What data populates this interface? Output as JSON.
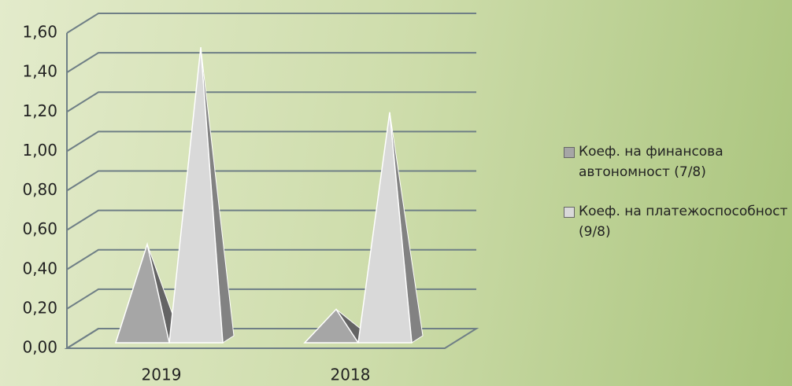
{
  "chart_data": {
    "type": "bar",
    "categories": [
      "2019",
      "2018"
    ],
    "series": [
      {
        "name": "Коеф. на финансова автономност (7/8)",
        "color": "#a6a6a6",
        "values": [
          0.48,
          0.15
        ]
      },
      {
        "name": "Коеф. на платежоспособност (9/8)",
        "color": "#d9d9d9",
        "values": [
          1.48,
          1.15
        ]
      }
    ],
    "ylim": [
      0,
      1.6
    ],
    "yticks": [
      {
        "value": 0,
        "label": "0,00"
      },
      {
        "value": 0.2,
        "label": "0,20"
      },
      {
        "value": 0.4,
        "label": "0,40"
      },
      {
        "value": 0.6,
        "label": "0,60"
      },
      {
        "value": 0.8,
        "label": "0,80"
      },
      {
        "value": 1.0,
        "label": "1,00"
      },
      {
        "value": 1.2,
        "label": "1,20"
      },
      {
        "value": 1.4,
        "label": "1,40"
      },
      {
        "value": 1.6,
        "label": "1,60"
      }
    ],
    "grid": true,
    "legend": "right"
  }
}
